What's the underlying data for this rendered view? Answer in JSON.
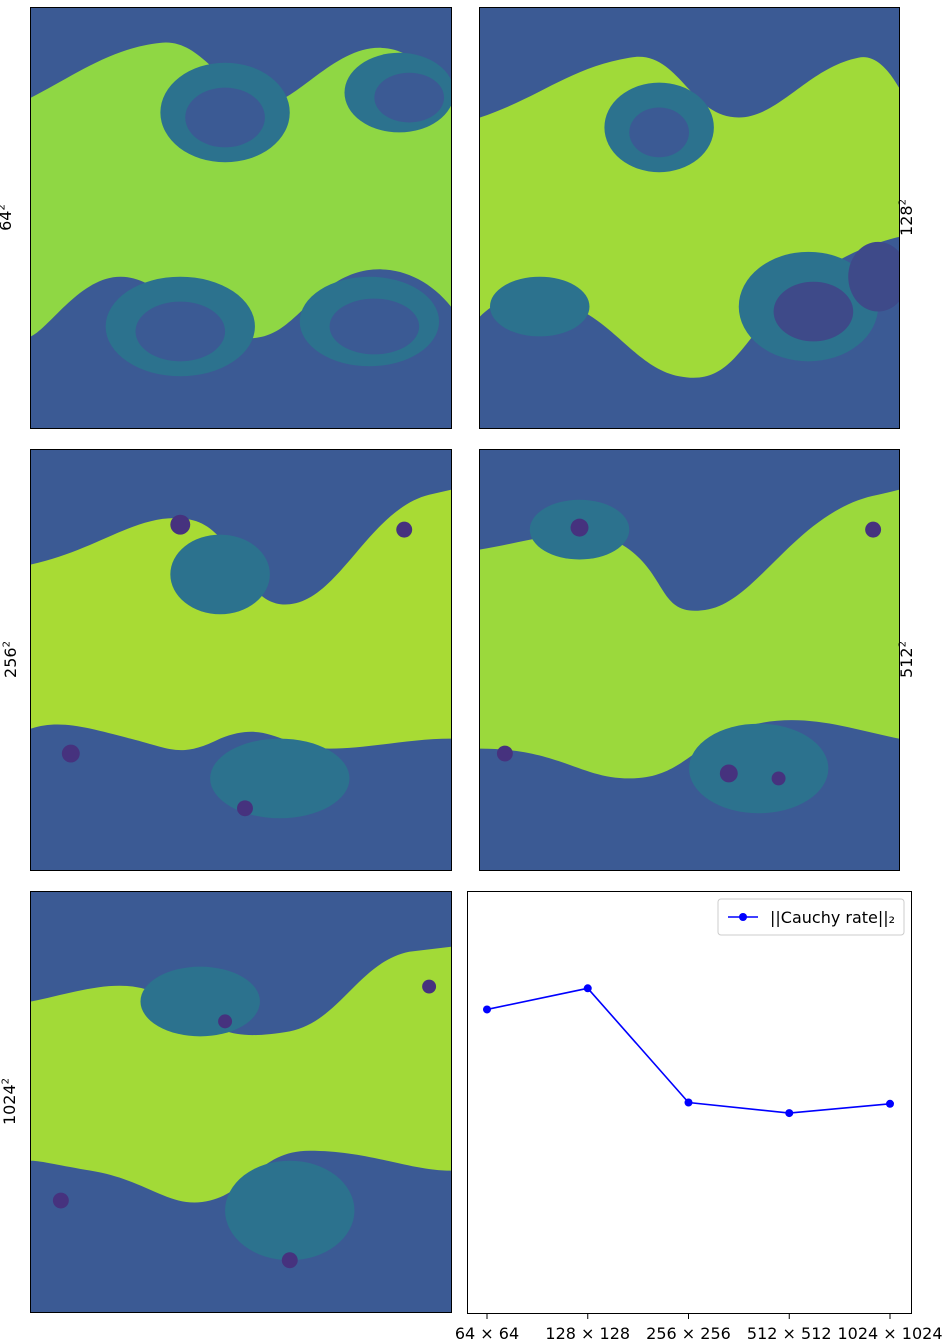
{
  "panels": [
    {
      "label_base": "64",
      "label_exp": "2",
      "resolution": 64
    },
    {
      "label_base": "128",
      "label_exp": "2",
      "resolution": 128
    },
    {
      "label_base": "256",
      "label_exp": "2",
      "resolution": 256
    },
    {
      "label_base": "512",
      "label_exp": "2",
      "resolution": 512
    },
    {
      "label_base": "1024",
      "label_exp": "2",
      "resolution": 1024
    }
  ],
  "colors": {
    "background_blue": "#3b5a94",
    "mid_teal": "#24868e",
    "light_green": "#8fd744",
    "yellow_green": "#b5de2b",
    "dark_core": "#46327e",
    "line": "#0000ff"
  },
  "chart_data": {
    "type": "line",
    "categories": [
      "64 × 64",
      "128 × 128",
      "256 × 256",
      "512 × 512",
      "1024 × 1024"
    ],
    "series": [
      {
        "name": "||Cauchy rate||₂",
        "values": [
          0.72,
          0.77,
          0.5,
          0.475,
          0.497
        ]
      }
    ],
    "ylim": [
      0,
      1
    ],
    "yticks_shown": false,
    "legend_position": "top-right",
    "grid": false
  }
}
